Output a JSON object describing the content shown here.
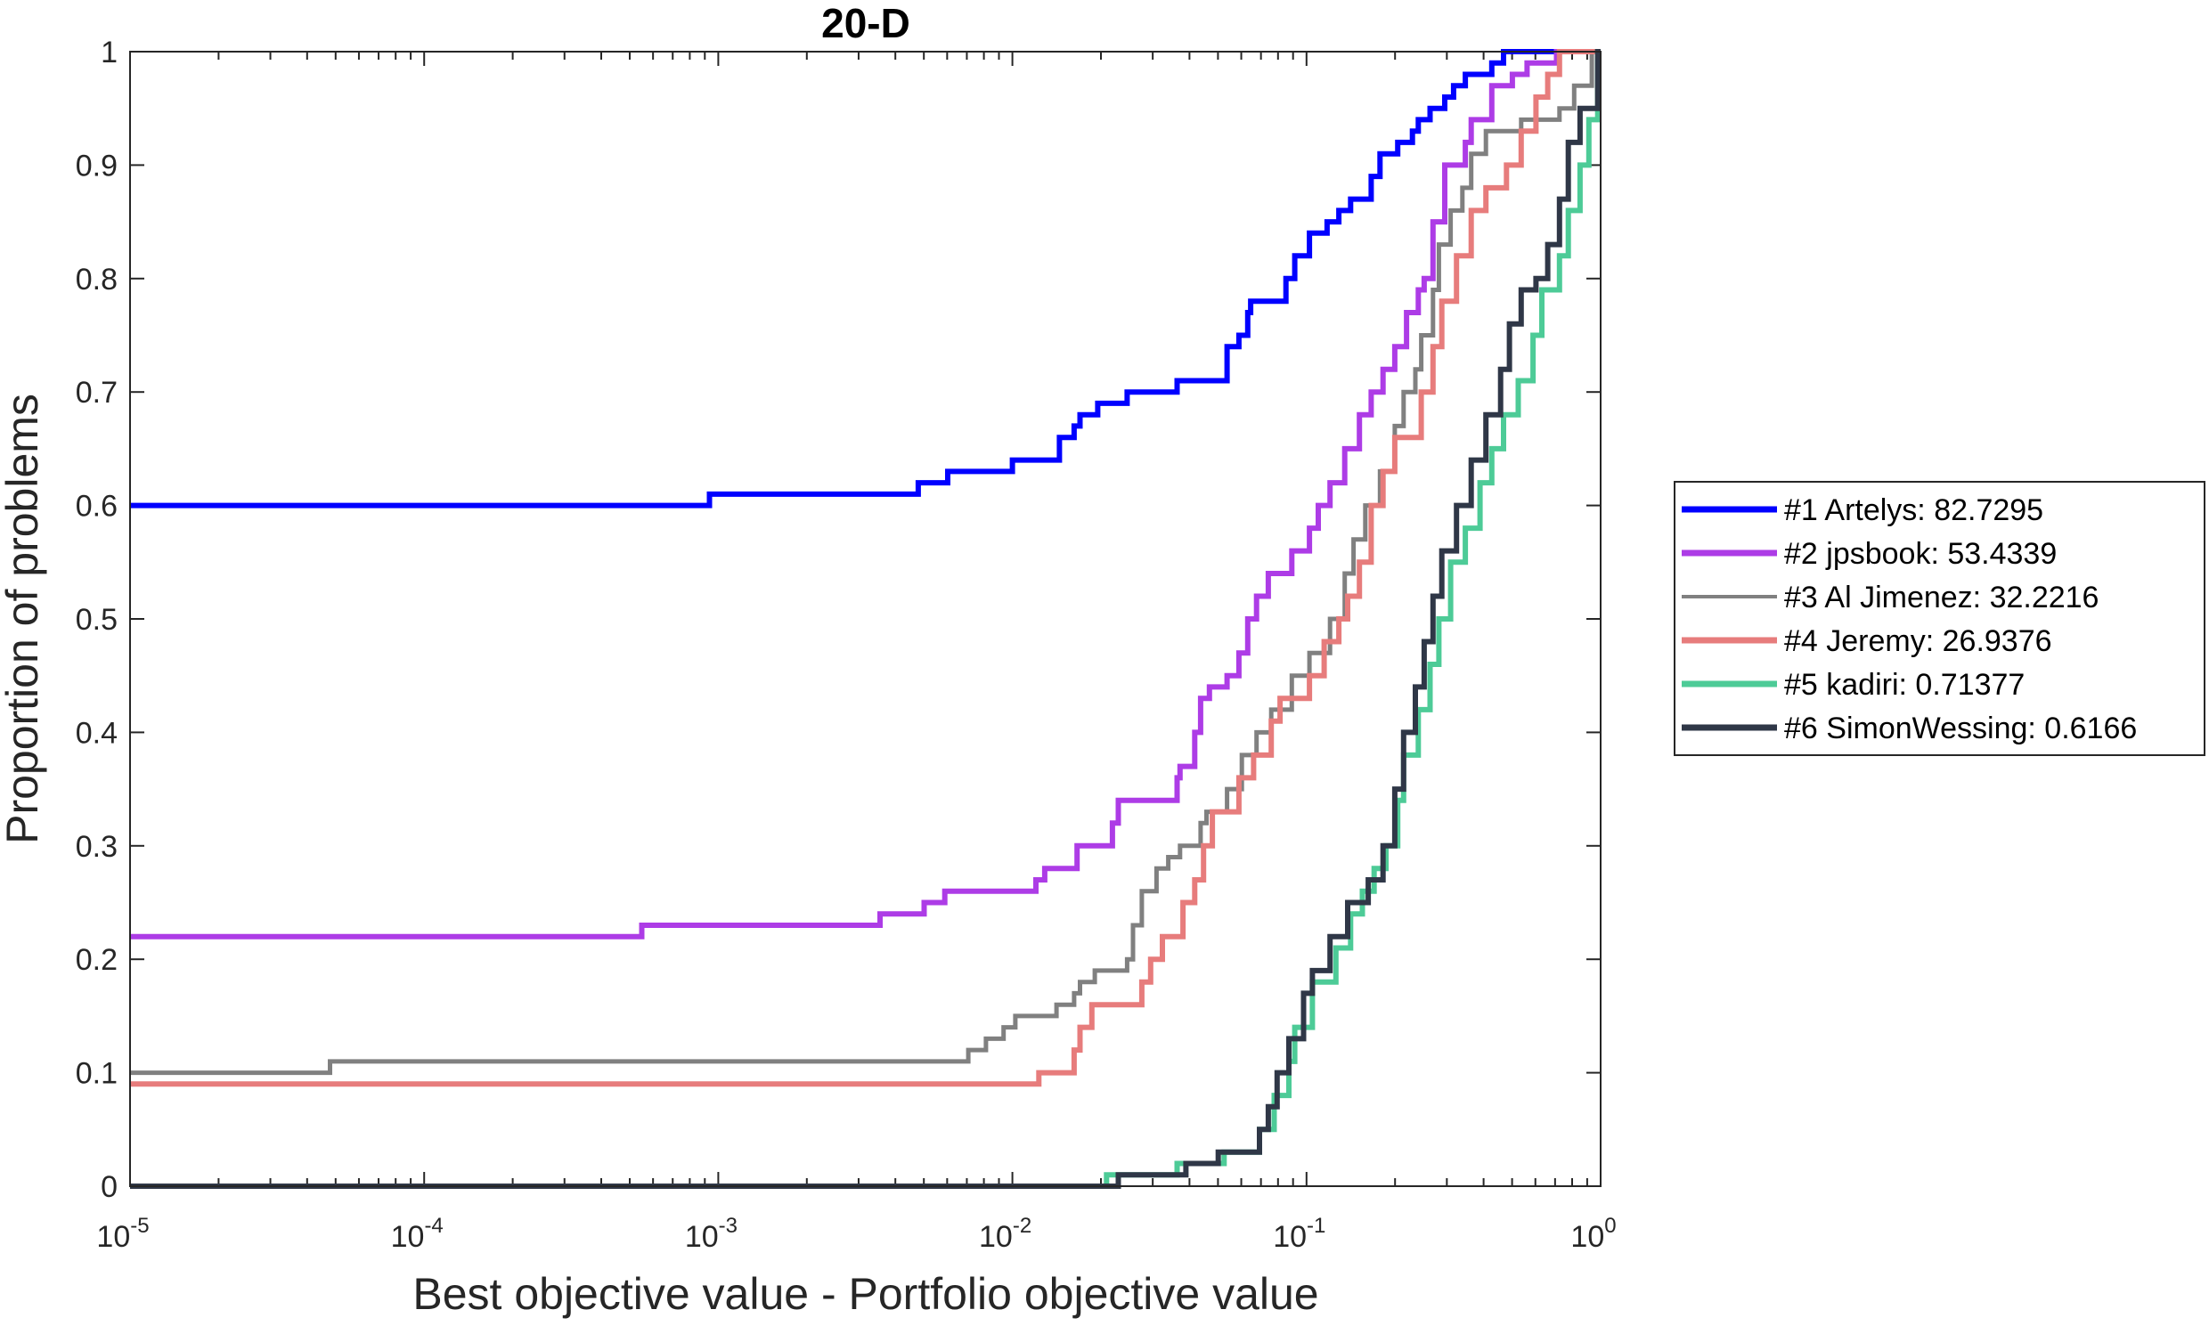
{
  "chart_data": {
    "type": "line",
    "title": "20-D",
    "xlabel": "Best objective value - Portfolio objective value",
    "ylabel": "Proportion of problems",
    "xscale": "log",
    "xlim": [
      1e-05,
      1
    ],
    "ylim": [
      0,
      1
    ],
    "x_step_encoding": "each step is [log10(x), y]: the curve rises to y at that x",
    "xticks": [
      {
        "base": "10",
        "exp": "-5",
        "log10": -5
      },
      {
        "base": "10",
        "exp": "-4",
        "log10": -4
      },
      {
        "base": "10",
        "exp": "-3",
        "log10": -3
      },
      {
        "base": "10",
        "exp": "-2",
        "log10": -2
      },
      {
        "base": "10",
        "exp": "-1",
        "log10": -1
      },
      {
        "base": "10",
        "exp": "0",
        "log10": 0
      }
    ],
    "yticks": [
      {
        "label": "0",
        "value": 0
      },
      {
        "label": "0.1",
        "value": 0.1
      },
      {
        "label": "0.2",
        "value": 0.2
      },
      {
        "label": "0.3",
        "value": 0.3
      },
      {
        "label": "0.4",
        "value": 0.4
      },
      {
        "label": "0.5",
        "value": 0.5
      },
      {
        "label": "0.6",
        "value": 0.6
      },
      {
        "label": "0.7",
        "value": 0.7
      },
      {
        "label": "0.8",
        "value": 0.8
      },
      {
        "label": "0.9",
        "value": 0.9
      },
      {
        "label": "1",
        "value": 1
      }
    ],
    "grid": false,
    "legend_position": "outside-right",
    "series": [
      {
        "name": "#1 Artelys: 82.7295",
        "color": "#0000ff",
        "start": 0.6,
        "steps": [
          [
            -3.03,
            0.61
          ],
          [
            -2.32,
            0.62
          ],
          [
            -2.22,
            0.63
          ],
          [
            -2.0,
            0.64
          ],
          [
            -1.84,
            0.66
          ],
          [
            -1.79,
            0.67
          ],
          [
            -1.77,
            0.68
          ],
          [
            -1.71,
            0.69
          ],
          [
            -1.61,
            0.7
          ],
          [
            -1.44,
            0.71
          ],
          [
            -1.27,
            0.74
          ],
          [
            -1.23,
            0.75
          ],
          [
            -1.2,
            0.77
          ],
          [
            -1.19,
            0.78
          ],
          [
            -1.07,
            0.8
          ],
          [
            -1.04,
            0.82
          ],
          [
            -0.99,
            0.84
          ],
          [
            -0.93,
            0.85
          ],
          [
            -0.89,
            0.86
          ],
          [
            -0.85,
            0.87
          ],
          [
            -0.78,
            0.89
          ],
          [
            -0.75,
            0.91
          ],
          [
            -0.69,
            0.92
          ],
          [
            -0.64,
            0.93
          ],
          [
            -0.62,
            0.94
          ],
          [
            -0.58,
            0.95
          ],
          [
            -0.53,
            0.96
          ],
          [
            -0.5,
            0.97
          ],
          [
            -0.46,
            0.98
          ],
          [
            -0.37,
            0.99
          ],
          [
            -0.33,
            1.0
          ]
        ]
      },
      {
        "name": "#2 jpsbook: 53.4339",
        "color": "#ad3ce6",
        "start": 0.22,
        "steps": [
          [
            -3.26,
            0.23
          ],
          [
            -2.45,
            0.24
          ],
          [
            -2.3,
            0.25
          ],
          [
            -2.23,
            0.26
          ],
          [
            -1.92,
            0.27
          ],
          [
            -1.89,
            0.28
          ],
          [
            -1.78,
            0.3
          ],
          [
            -1.66,
            0.32
          ],
          [
            -1.64,
            0.34
          ],
          [
            -1.44,
            0.36
          ],
          [
            -1.43,
            0.37
          ],
          [
            -1.38,
            0.4
          ],
          [
            -1.36,
            0.43
          ],
          [
            -1.33,
            0.44
          ],
          [
            -1.27,
            0.45
          ],
          [
            -1.23,
            0.47
          ],
          [
            -1.2,
            0.5
          ],
          [
            -1.17,
            0.52
          ],
          [
            -1.13,
            0.54
          ],
          [
            -1.05,
            0.56
          ],
          [
            -0.99,
            0.58
          ],
          [
            -0.96,
            0.6
          ],
          [
            -0.92,
            0.62
          ],
          [
            -0.87,
            0.65
          ],
          [
            -0.82,
            0.68
          ],
          [
            -0.78,
            0.7
          ],
          [
            -0.74,
            0.72
          ],
          [
            -0.7,
            0.74
          ],
          [
            -0.66,
            0.77
          ],
          [
            -0.62,
            0.79
          ],
          [
            -0.6,
            0.8
          ],
          [
            -0.57,
            0.85
          ],
          [
            -0.53,
            0.9
          ],
          [
            -0.46,
            0.92
          ],
          [
            -0.44,
            0.94
          ],
          [
            -0.37,
            0.97
          ],
          [
            -0.3,
            0.98
          ],
          [
            -0.25,
            0.99
          ],
          [
            -0.15,
            1.0
          ]
        ]
      },
      {
        "name": "#3 Al Jimenez: 32.2216",
        "color": "#808080",
        "start": 0.1,
        "steps": [
          [
            -4.32,
            0.11
          ],
          [
            -2.15,
            0.12
          ],
          [
            -2.09,
            0.13
          ],
          [
            -2.03,
            0.14
          ],
          [
            -1.99,
            0.15
          ],
          [
            -1.85,
            0.16
          ],
          [
            -1.79,
            0.17
          ],
          [
            -1.77,
            0.18
          ],
          [
            -1.72,
            0.19
          ],
          [
            -1.61,
            0.2
          ],
          [
            -1.59,
            0.23
          ],
          [
            -1.56,
            0.26
          ],
          [
            -1.51,
            0.28
          ],
          [
            -1.47,
            0.29
          ],
          [
            -1.43,
            0.3
          ],
          [
            -1.36,
            0.32
          ],
          [
            -1.34,
            0.33
          ],
          [
            -1.27,
            0.35
          ],
          [
            -1.22,
            0.38
          ],
          [
            -1.17,
            0.4
          ],
          [
            -1.12,
            0.42
          ],
          [
            -1.05,
            0.45
          ],
          [
            -0.99,
            0.47
          ],
          [
            -0.92,
            0.5
          ],
          [
            -0.87,
            0.54
          ],
          [
            -0.84,
            0.57
          ],
          [
            -0.8,
            0.6
          ],
          [
            -0.75,
            0.63
          ],
          [
            -0.7,
            0.67
          ],
          [
            -0.67,
            0.7
          ],
          [
            -0.63,
            0.72
          ],
          [
            -0.61,
            0.75
          ],
          [
            -0.57,
            0.79
          ],
          [
            -0.55,
            0.83
          ],
          [
            -0.51,
            0.86
          ],
          [
            -0.47,
            0.88
          ],
          [
            -0.44,
            0.91
          ],
          [
            -0.39,
            0.93
          ],
          [
            -0.27,
            0.94
          ],
          [
            -0.14,
            0.95
          ],
          [
            -0.09,
            0.97
          ],
          [
            -0.03,
            1.0
          ]
        ]
      },
      {
        "name": "#4 Jeremy: 26.9376",
        "color": "#e77c7c",
        "start": 0.09,
        "steps": [
          [
            -1.91,
            0.1
          ],
          [
            -1.79,
            0.12
          ],
          [
            -1.77,
            0.14
          ],
          [
            -1.73,
            0.16
          ],
          [
            -1.56,
            0.18
          ],
          [
            -1.53,
            0.2
          ],
          [
            -1.49,
            0.22
          ],
          [
            -1.42,
            0.25
          ],
          [
            -1.38,
            0.27
          ],
          [
            -1.35,
            0.3
          ],
          [
            -1.32,
            0.33
          ],
          [
            -1.23,
            0.36
          ],
          [
            -1.18,
            0.38
          ],
          [
            -1.12,
            0.41
          ],
          [
            -1.09,
            0.43
          ],
          [
            -0.99,
            0.45
          ],
          [
            -0.94,
            0.48
          ],
          [
            -0.89,
            0.5
          ],
          [
            -0.86,
            0.52
          ],
          [
            -0.82,
            0.55
          ],
          [
            -0.78,
            0.6
          ],
          [
            -0.74,
            0.63
          ],
          [
            -0.7,
            0.66
          ],
          [
            -0.61,
            0.7
          ],
          [
            -0.57,
            0.74
          ],
          [
            -0.54,
            0.78
          ],
          [
            -0.49,
            0.82
          ],
          [
            -0.44,
            0.86
          ],
          [
            -0.39,
            0.88
          ],
          [
            -0.32,
            0.9
          ],
          [
            -0.27,
            0.93
          ],
          [
            -0.22,
            0.96
          ],
          [
            -0.18,
            0.98
          ],
          [
            -0.14,
            1.0
          ]
        ]
      },
      {
        "name": "#5 kadiri: 0.71377",
        "color": "#4dcb97",
        "start": 0,
        "steps": [
          [
            -1.68,
            0.01
          ],
          [
            -1.44,
            0.02
          ],
          [
            -1.28,
            0.03
          ],
          [
            -1.16,
            0.05
          ],
          [
            -1.11,
            0.08
          ],
          [
            -1.06,
            0.11
          ],
          [
            -1.04,
            0.14
          ],
          [
            -0.98,
            0.18
          ],
          [
            -0.9,
            0.21
          ],
          [
            -0.85,
            0.24
          ],
          [
            -0.81,
            0.26
          ],
          [
            -0.77,
            0.28
          ],
          [
            -0.73,
            0.3
          ],
          [
            -0.69,
            0.34
          ],
          [
            -0.67,
            0.38
          ],
          [
            -0.62,
            0.42
          ],
          [
            -0.58,
            0.46
          ],
          [
            -0.55,
            0.5
          ],
          [
            -0.51,
            0.55
          ],
          [
            -0.46,
            0.58
          ],
          [
            -0.41,
            0.62
          ],
          [
            -0.37,
            0.65
          ],
          [
            -0.33,
            0.68
          ],
          [
            -0.28,
            0.71
          ],
          [
            -0.23,
            0.75
          ],
          [
            -0.2,
            0.79
          ],
          [
            -0.14,
            0.82
          ],
          [
            -0.11,
            0.86
          ],
          [
            -0.07,
            0.9
          ],
          [
            -0.04,
            0.94
          ],
          [
            -0.01,
            1.0
          ]
        ]
      },
      {
        "name": "#6 SimonWessing: 0.6166",
        "color": "#2f3747",
        "start": 0,
        "steps": [
          [
            -1.64,
            0.01
          ],
          [
            -1.41,
            0.02
          ],
          [
            -1.3,
            0.03
          ],
          [
            -1.16,
            0.05
          ],
          [
            -1.13,
            0.07
          ],
          [
            -1.1,
            0.1
          ],
          [
            -1.06,
            0.13
          ],
          [
            -1.01,
            0.17
          ],
          [
            -0.98,
            0.19
          ],
          [
            -0.92,
            0.22
          ],
          [
            -0.86,
            0.25
          ],
          [
            -0.79,
            0.27
          ],
          [
            -0.74,
            0.3
          ],
          [
            -0.7,
            0.35
          ],
          [
            -0.67,
            0.4
          ],
          [
            -0.63,
            0.44
          ],
          [
            -0.6,
            0.48
          ],
          [
            -0.57,
            0.52
          ],
          [
            -0.54,
            0.56
          ],
          [
            -0.49,
            0.6
          ],
          [
            -0.44,
            0.64
          ],
          [
            -0.39,
            0.68
          ],
          [
            -0.34,
            0.72
          ],
          [
            -0.31,
            0.76
          ],
          [
            -0.27,
            0.79
          ],
          [
            -0.22,
            0.8
          ],
          [
            -0.18,
            0.83
          ],
          [
            -0.14,
            0.87
          ],
          [
            -0.11,
            0.92
          ],
          [
            -0.07,
            0.95
          ],
          [
            -0.01,
            1.0
          ]
        ]
      }
    ]
  }
}
